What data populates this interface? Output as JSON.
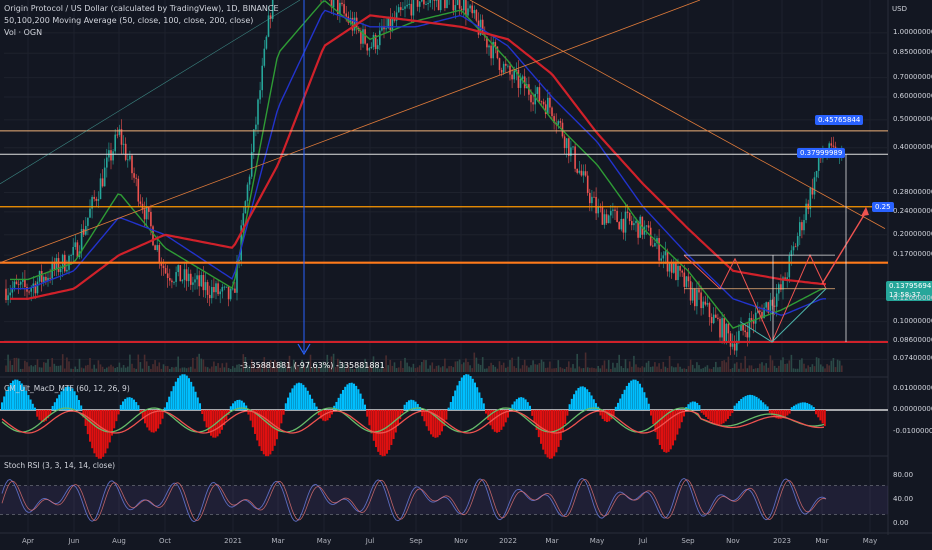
{
  "header": {
    "title": "Origin Protocol / US Dollar (calculated by TradingView), 1D, BINANCE",
    "ma_label": "50,100,200 Moving Average (50, close, 100, close, 200, close)",
    "vol_label": "Vol · OGN"
  },
  "price_axis": {
    "currency": "USD",
    "ticks": [
      "1.00000000",
      "0.85000000",
      "0.70000000",
      "0.60000000",
      "0.50000000",
      "0.40000000",
      "0.28000000",
      "0.24000000",
      "0.20000000",
      "0.17000000",
      "0.12000000",
      "0.10000000",
      "0.08600000",
      "0.07400000"
    ]
  },
  "price_tags": {
    "target_high": "0.45765844",
    "target_mid": "0.37999989",
    "target_low": "0.25",
    "last_price": "0.13795694",
    "countdown": "13:58:37"
  },
  "measure_label": "-3.35881881 (-97.63%) -335881881",
  "macd": {
    "title": "CM_Ult_MacD_MTF (60, 12, 26, 9)",
    "ticks": [
      "0.01000000",
      "0.00000000",
      "-0.01000000"
    ]
  },
  "stoch": {
    "title": "Stoch RSI (3, 3, 14, 14, close)",
    "ticks": [
      "80.00",
      "40.00",
      "0.00"
    ]
  },
  "x_axis": {
    "labels": [
      "Apr",
      "Jun",
      "Aug",
      "Oct",
      "2021",
      "Mar",
      "May",
      "Jul",
      "Sep",
      "Nov",
      "2022",
      "Mar",
      "May",
      "Jul",
      "Sep",
      "Nov",
      "2023",
      "Mar",
      "May"
    ]
  },
  "colors": {
    "background": "#131722",
    "ma50": "#2e9b35",
    "ma100": "#2233cc",
    "ma200": "#d0212a",
    "bull": "#26a69a",
    "bear": "#ef5350",
    "fib_orange": "#ff9800",
    "macd_up": "#00bfff",
    "macd_down": "#e01010",
    "stoch_k": "#7e57c2"
  },
  "chart_data": {
    "type": "line",
    "symbol": "OGNUSD",
    "timeframe": "1D",
    "scale": "log",
    "x": [
      "2020-04",
      "2020-06",
      "2020-08",
      "2020-10",
      "2021-01",
      "2021-03",
      "2021-05",
      "2021-07",
      "2021-09",
      "2021-11",
      "2022-01",
      "2022-03",
      "2022-05",
      "2022-07",
      "2022-09",
      "2022-11",
      "2023-01",
      "2023-03"
    ],
    "series": [
      {
        "name": "Price",
        "values": [
          0.13,
          0.17,
          0.45,
          0.15,
          0.12,
          1.9,
          1.4,
          0.9,
          1.3,
          1.3,
          0.72,
          0.55,
          0.24,
          0.21,
          0.13,
          0.085,
          0.13,
          0.38
        ]
      },
      {
        "name": "MA 50",
        "values": [
          0.14,
          0.16,
          0.28,
          0.18,
          0.13,
          0.85,
          1.3,
          0.95,
          1.1,
          1.2,
          0.8,
          0.5,
          0.35,
          0.21,
          0.15,
          0.095,
          0.11,
          0.13
        ]
      },
      {
        "name": "MA 100",
        "values": [
          0.13,
          0.15,
          0.23,
          0.2,
          0.14,
          0.55,
          1.2,
          1.05,
          1.05,
          1.15,
          0.9,
          0.6,
          0.42,
          0.25,
          0.17,
          0.12,
          0.105,
          0.12
        ]
      },
      {
        "name": "MA 200",
        "values": [
          0.12,
          0.13,
          0.17,
          0.2,
          0.18,
          0.35,
          0.9,
          1.15,
          1.1,
          1.05,
          0.95,
          0.72,
          0.45,
          0.3,
          0.21,
          0.15,
          0.14,
          0.135
        ]
      }
    ],
    "horizontal_levels": [
      0.4577,
      0.38,
      0.25,
      0.16,
      0.085
    ],
    "ylim": [
      0.07,
      1.3
    ]
  }
}
